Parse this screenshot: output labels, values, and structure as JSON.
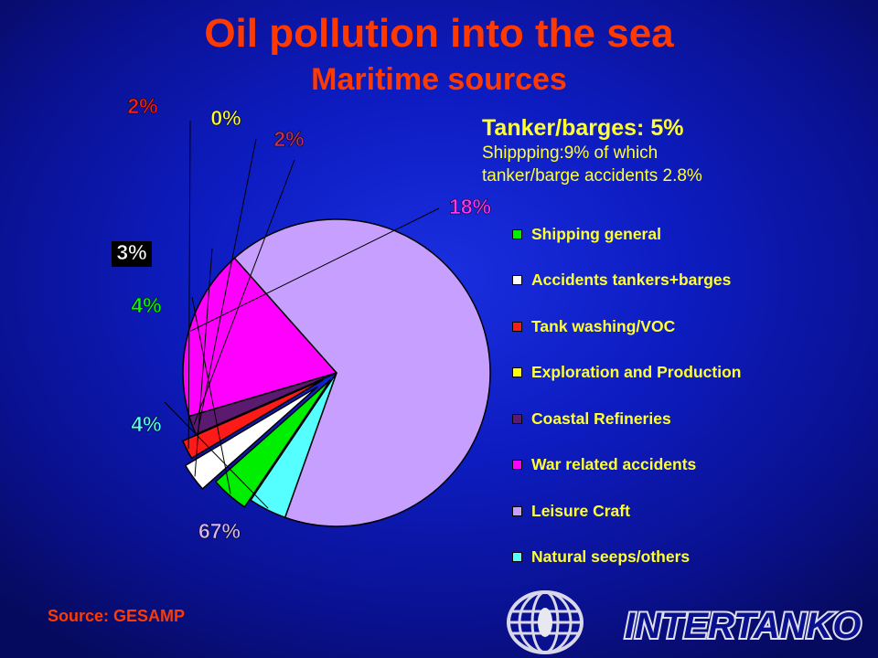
{
  "header": {
    "title": "Oil pollution into the sea",
    "subtitle": "Maritime sources"
  },
  "note": {
    "line1": "Tanker/barges:  5%",
    "line2": "Shippping:9% of which",
    "line3": "tanker/barge accidents 2.8%"
  },
  "source": "Source: GESAMP",
  "logo_text": "INTERTANKO",
  "chart_data": {
    "type": "pie",
    "title": "Oil pollution into the sea",
    "subtitle": "Maritime sources",
    "legend_position": "right",
    "slices": [
      {
        "label": "Shipping general",
        "value": 4,
        "display": "4%",
        "color": "#00ee00",
        "label_color": "#00ff00"
      },
      {
        "label": "Accidents tankers+barges",
        "value": 3,
        "display": "3%",
        "color": "#ffffff",
        "label_color": "#ffffff"
      },
      {
        "label": "Tank washing/VOC",
        "value": 2,
        "display": "2%",
        "color": "#ff1a1a",
        "label_color": "#ff1a1a"
      },
      {
        "label": "Exploration and Production",
        "value": 0,
        "display": "0%",
        "color": "#ffff00",
        "label_color": "#ffff33"
      },
      {
        "label": "Coastal Refineries",
        "value": 2,
        "display": "2%",
        "color": "#5a1a70",
        "label_color": "#c0305a"
      },
      {
        "label": "War related accidents",
        "value": 18,
        "display": "18%",
        "color": "#ff00ff",
        "label_color": "#ff33ff"
      },
      {
        "label": "Leisure Craft",
        "value": 67,
        "display": "67%",
        "color": "#c7a0ff",
        "label_color": "#d7b8ff"
      },
      {
        "label": "Natural seeps/others",
        "value": 4,
        "display": "4%",
        "color": "#55ffff",
        "label_color": "#55ffff"
      }
    ]
  }
}
